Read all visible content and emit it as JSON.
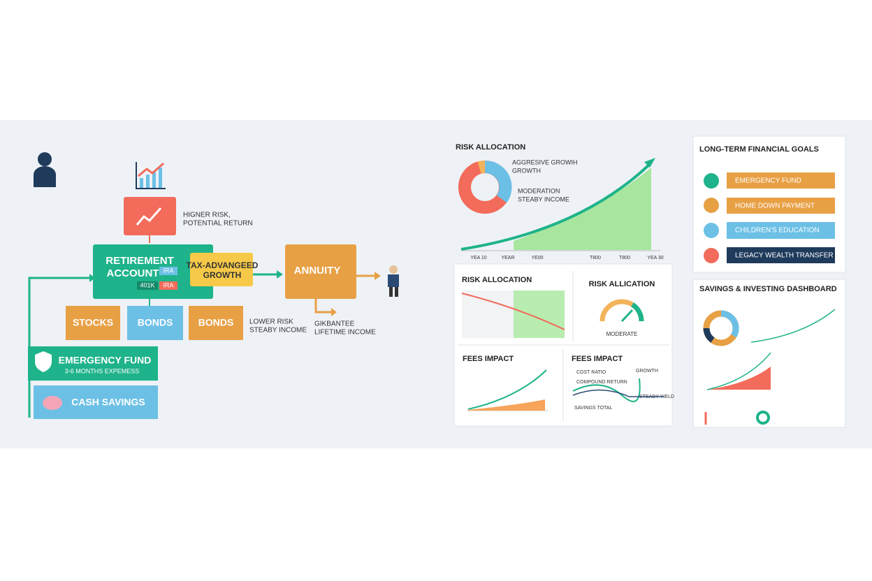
{
  "flow": {
    "risk_note": [
      "HIGNER RISK,",
      "POTENTIAL RETURN"
    ],
    "retirement": {
      "title": [
        "RETIREMENT",
        "ACCOUNT"
      ],
      "tags": [
        "IRA",
        "401K",
        "IRA"
      ]
    },
    "tax": [
      "TAX-ADVANGEED",
      "GROWTH"
    ],
    "annuity": "ANNUITY",
    "assets": [
      "STOCKS",
      "BONDS",
      "BONDS"
    ],
    "lower_note": [
      "LOWER RISK",
      "STEABY INCOME"
    ],
    "guarantee": [
      "GIKBANTEE",
      "LIFETIME INCOME"
    ],
    "emergency": {
      "title": "EMERGENCY FUND",
      "sub": "3-6 MONTHS EXPEMESS"
    },
    "cash": "CASH SAVINGS"
  },
  "growth": {
    "title": "RISK ALLOCATION",
    "legend": [
      "AGGRESIVE GROWIH",
      "GROWTH",
      "MODERATION",
      "STEABY INCOME"
    ],
    "x_labels": [
      "YEA 10",
      "YEAR",
      "YE00",
      "T800",
      "T800",
      "YEA 30"
    ]
  },
  "panels": {
    "risk_left": "RISK ALLOCATION",
    "risk_right": "RISK ALLICATION",
    "gauge_label": "MODERATE",
    "fees_left": "FEES IMPACT",
    "fees_right": "FEES IMPACT",
    "fees_legend": [
      "COST RATIO",
      "COMPOUND RETURN",
      "GROWTH",
      "STEADY YIELD",
      "SAVINGS TOTAL"
    ]
  },
  "goals": {
    "title": "LONG-TERM FINANCIAL GOALS",
    "items": [
      "EMERGENCY FUND",
      "HOME DOWN PAYMENT",
      "CHILDREN'S EDUCATION",
      "LEGACY WEALTH TRANSFER"
    ]
  },
  "dashboard": {
    "title": "SAVINGS & INVESTING DASHBOARD"
  }
}
